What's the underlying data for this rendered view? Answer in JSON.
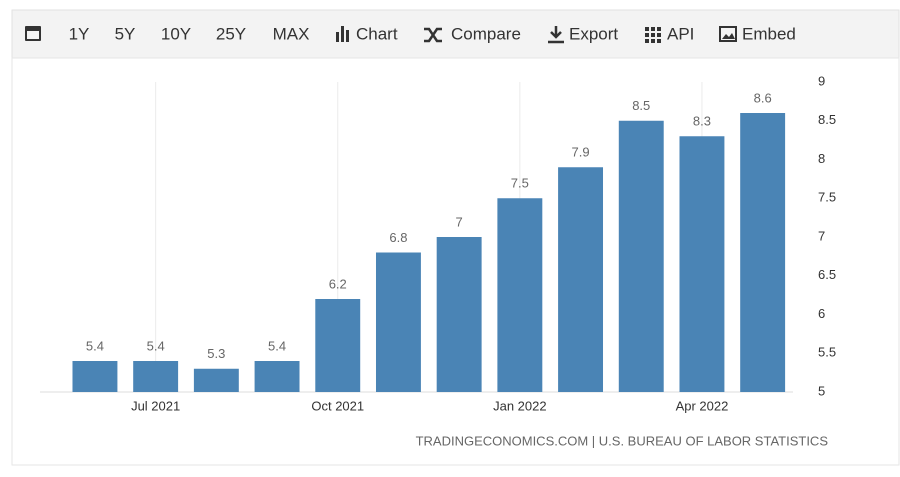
{
  "toolbar": {
    "ranges": [
      "1Y",
      "5Y",
      "10Y",
      "25Y",
      "MAX"
    ],
    "buttons": [
      "Chart",
      "Compare",
      "Export",
      "API",
      "Embed"
    ]
  },
  "chart_data": {
    "type": "bar",
    "categories": [
      null,
      "Jul 2021",
      null,
      null,
      "Oct 2021",
      null,
      null,
      "Jan 2022",
      null,
      null,
      "Apr 2022",
      null
    ],
    "values": [
      5.4,
      5.4,
      5.3,
      5.4,
      6.2,
      6.8,
      7,
      7.5,
      7.9,
      8.5,
      8.3,
      8.6
    ],
    "color": "#4a84b5",
    "ylim": [
      5,
      9
    ],
    "yticks": [
      5,
      5.5,
      6,
      6.5,
      7,
      7.5,
      8,
      8.5,
      9
    ],
    "grid": "x",
    "source": "TRADINGECONOMICS.COM | U.S. BUREAU OF LABOR STATISTICS"
  }
}
